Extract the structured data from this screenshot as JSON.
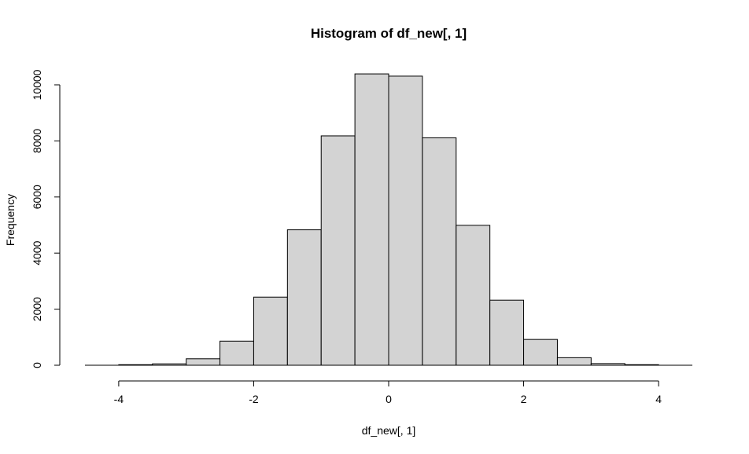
{
  "chart_data": {
    "type": "bar",
    "title": "Histogram of df_new[, 1]",
    "xlabel": "df_new[, 1]",
    "ylabel": "Frequency",
    "bin_edges": [
      -4,
      -3.5,
      -3,
      -2.5,
      -2,
      -1.5,
      -1,
      -0.5,
      0,
      0.5,
      1,
      1.5,
      2,
      2.5,
      3,
      3.5,
      4
    ],
    "values": [
      20,
      50,
      230,
      860,
      2430,
      4830,
      8180,
      10390,
      10310,
      8110,
      4990,
      2320,
      920,
      270,
      60,
      20
    ],
    "xlim": [
      -4.5,
      4.5
    ],
    "ylim": [
      0,
      10500
    ],
    "xticks": [
      -4,
      -2,
      0,
      2,
      4
    ],
    "yticks": [
      0,
      2000,
      4000,
      6000,
      8000,
      10000
    ],
    "bar_color": "#d3d3d3",
    "grid": false
  }
}
